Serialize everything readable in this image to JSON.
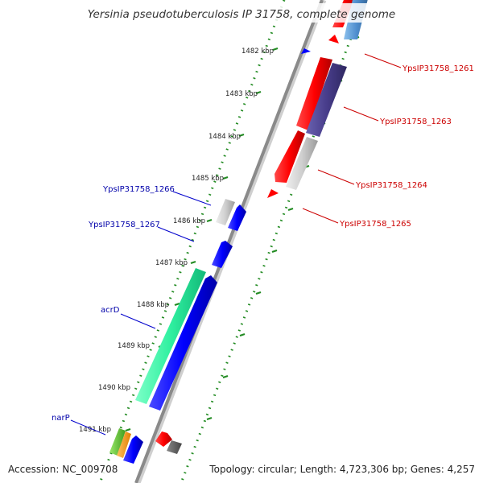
{
  "title": "Yersinia pseudotuberculosis IP 31758, complete genome",
  "footer": {
    "accession": "Accession: NC_009708",
    "summary": "Topology: circular; Length: 4,723,306 bp; Genes: 4,257"
  },
  "ticks": [
    "1482 kbp",
    "1483 kbp",
    "1484 kbp",
    "1485 kbp",
    "1486 kbp",
    "1487 kbp",
    "1488 kbp",
    "1489 kbp",
    "1490 kbp",
    "1491 kbp"
  ],
  "colors": {
    "forward_label": "#cc0000",
    "reverse_label": "#00008b",
    "backbone": "#8a8a8a",
    "tick_dot": "#228b22"
  },
  "genes_forward": [
    {
      "label": "YpsIP31758_1261"
    },
    {
      "label": "YpsIP31758_1263"
    },
    {
      "label": "YpsIP31758_1264"
    },
    {
      "label": "YpsIP31758_1265"
    }
  ],
  "genes_reverse": [
    {
      "label": "YpsIP31758_1266"
    },
    {
      "label": "YpsIP31758_1267"
    },
    {
      "label": "acrD"
    },
    {
      "label": "narP"
    }
  ]
}
